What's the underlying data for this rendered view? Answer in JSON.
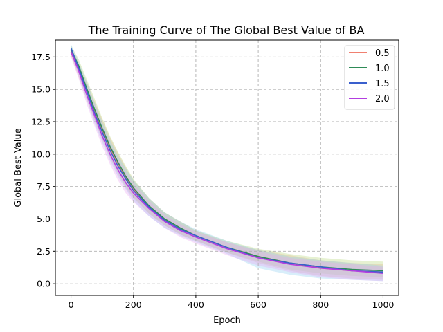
{
  "chart_data": {
    "type": "line",
    "title": "The Training Curve of The Global Best Value of BA",
    "xlabel": "Epoch",
    "ylabel": "Global Best Value",
    "xlim": [
      -50,
      1050
    ],
    "ylim": [
      -0.9,
      18.8
    ],
    "xticks": [
      0,
      200,
      400,
      600,
      800,
      1000
    ],
    "yticks": [
      0.0,
      2.5,
      5.0,
      7.5,
      10.0,
      12.5,
      15.0,
      17.5
    ],
    "xtick_labels": [
      "0",
      "200",
      "400",
      "600",
      "800",
      "1000"
    ],
    "ytick_labels": [
      "0.0",
      "2.5",
      "5.0",
      "7.5",
      "10.0",
      "12.5",
      "15.0",
      "17.5"
    ],
    "grid": true,
    "legend_position": "top-right",
    "x": [
      0,
      25,
      50,
      75,
      100,
      125,
      150,
      175,
      200,
      250,
      300,
      350,
      400,
      500,
      600,
      700,
      800,
      900,
      1000
    ],
    "series": [
      {
        "name": "0.5",
        "color": "#f08070",
        "values": [
          18.0,
          16.5,
          14.9,
          13.3,
          11.9,
          10.5,
          9.3,
          8.2,
          7.3,
          6.0,
          5.0,
          4.3,
          3.7,
          2.8,
          2.1,
          1.6,
          1.2,
          1.0,
          0.9
        ],
        "band_lower": [
          17.6,
          15.9,
          14.2,
          12.6,
          11.1,
          9.7,
          8.5,
          7.4,
          6.6,
          5.4,
          4.5,
          3.8,
          3.3,
          2.4,
          1.6,
          1.0,
          0.6,
          0.4,
          0.3
        ],
        "band_upper": [
          18.3,
          17.0,
          15.6,
          14.1,
          12.7,
          11.3,
          10.1,
          9.0,
          8.0,
          6.6,
          5.5,
          4.8,
          4.1,
          3.2,
          2.6,
          2.2,
          1.8,
          1.6,
          1.5
        ]
      },
      {
        "name": "1.0",
        "color": "#2e8b57",
        "values": [
          18.1,
          16.8,
          15.1,
          13.5,
          12.0,
          10.6,
          9.4,
          8.3,
          7.4,
          6.0,
          5.0,
          4.3,
          3.7,
          2.8,
          2.1,
          1.6,
          1.3,
          1.1,
          1.0
        ],
        "band_lower": [
          17.7,
          16.2,
          14.4,
          12.7,
          11.2,
          9.8,
          8.6,
          7.5,
          6.7,
          5.4,
          4.5,
          3.8,
          3.3,
          2.4,
          1.7,
          1.1,
          0.8,
          0.6,
          0.5
        ],
        "band_upper": [
          18.4,
          17.3,
          15.8,
          14.3,
          12.8,
          11.4,
          10.2,
          9.1,
          8.1,
          6.6,
          5.5,
          4.8,
          4.1,
          3.3,
          2.7,
          2.3,
          2.0,
          1.8,
          1.7
        ]
      },
      {
        "name": "1.5",
        "color": "#3a5fcd",
        "values": [
          18.2,
          16.6,
          14.9,
          13.2,
          11.7,
          10.3,
          9.1,
          8.1,
          7.2,
          5.9,
          4.9,
          4.2,
          3.7,
          2.8,
          2.0,
          1.6,
          1.3,
          1.0,
          0.9
        ],
        "band_lower": [
          17.8,
          16.0,
          14.2,
          12.4,
          10.9,
          9.5,
          8.3,
          7.3,
          6.4,
          5.2,
          4.3,
          3.7,
          3.2,
          2.3,
          1.2,
          0.7,
          0.4,
          0.3,
          0.2
        ],
        "band_upper": [
          18.5,
          17.1,
          15.6,
          14.0,
          12.5,
          11.1,
          9.9,
          8.9,
          8.0,
          6.6,
          5.5,
          4.8,
          4.2,
          3.3,
          2.6,
          2.1,
          1.8,
          1.6,
          1.4
        ]
      },
      {
        "name": "2.0",
        "color": "#b23ee0",
        "values": [
          17.9,
          16.4,
          14.6,
          13.0,
          11.4,
          10.0,
          8.8,
          7.8,
          7.0,
          5.8,
          4.8,
          4.1,
          3.6,
          2.7,
          2.0,
          1.5,
          1.2,
          1.0,
          0.8
        ],
        "band_lower": [
          17.5,
          15.8,
          13.9,
          12.2,
          10.6,
          9.2,
          8.0,
          7.0,
          6.3,
          5.2,
          4.3,
          3.6,
          3.1,
          2.2,
          1.4,
          0.9,
          0.5,
          0.3,
          0.2
        ],
        "band_upper": [
          18.2,
          16.9,
          15.3,
          13.8,
          12.2,
          10.8,
          9.6,
          8.6,
          7.7,
          6.4,
          5.3,
          4.6,
          4.0,
          3.2,
          2.5,
          2.0,
          1.7,
          1.5,
          1.3
        ]
      }
    ]
  }
}
